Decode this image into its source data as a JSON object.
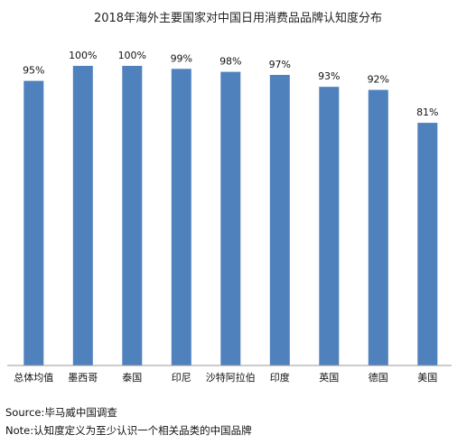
{
  "chart_data": {
    "type": "bar",
    "title": "2018年海外主要国家对中国日用消费品品牌认知度分布",
    "categories": [
      "总体均值",
      "墨西哥",
      "泰国",
      "印尼",
      "沙特阿拉伯",
      "印度",
      "英国",
      "德国",
      "美国"
    ],
    "values": [
      95,
      100,
      100,
      99,
      98,
      97,
      93,
      92,
      81
    ],
    "data_labels": [
      "95%",
      "100%",
      "100%",
      "99%",
      "98%",
      "97%",
      "93%",
      "92%",
      "81%"
    ],
    "ylim": [
      0,
      100
    ],
    "grid": false,
    "legend": "none",
    "xlabel": "",
    "ylabel": "",
    "bar_color": "#4f81bd"
  },
  "footer": {
    "source": "Source:毕马威中国调查",
    "note": "Note:认知度定义为至少认识一个相关品类的中国品牌"
  }
}
